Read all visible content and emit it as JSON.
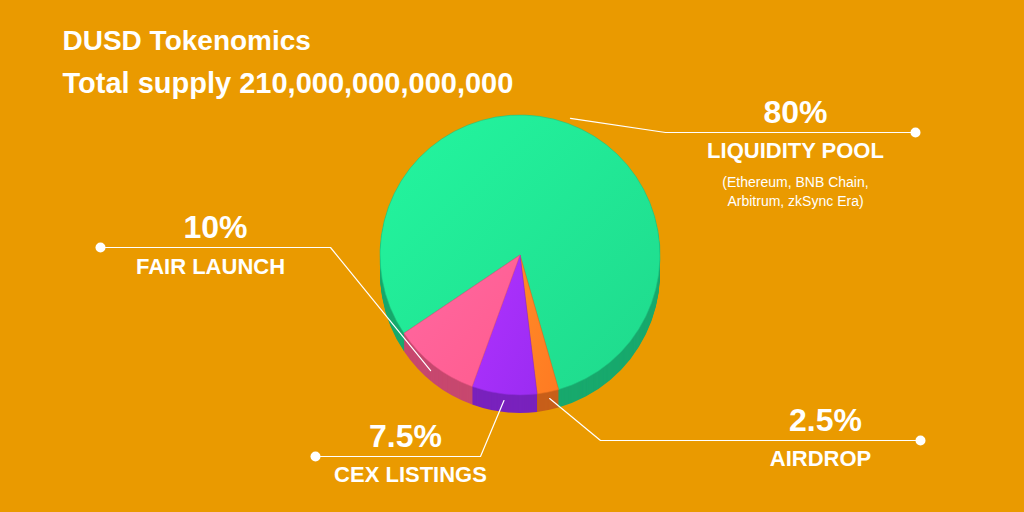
{
  "chart_data": {
    "type": "pie",
    "title": "DUSD Tokenomics",
    "subtitle": "Total supply 210,000,000,000,000",
    "categories": [
      "LIQUIDITY POOL",
      "AIRDROP",
      "CEX LISTINGS",
      "FAIR LAUNCH"
    ],
    "values": [
      80,
      2.5,
      7.5,
      10
    ],
    "value_labels": [
      "80%",
      "2.5%",
      "7.5%",
      "10%"
    ],
    "colors": [
      "#1FD98C",
      "#FF7A22",
      "#9B2CF2",
      "#FF5C8E"
    ],
    "data_labels": true,
    "annotations": [
      {
        "category": "LIQUIDITY POOL",
        "text": "(Ethereum, BNB Chain, Arbitrum, zkSync Era)"
      }
    ]
  }
}
